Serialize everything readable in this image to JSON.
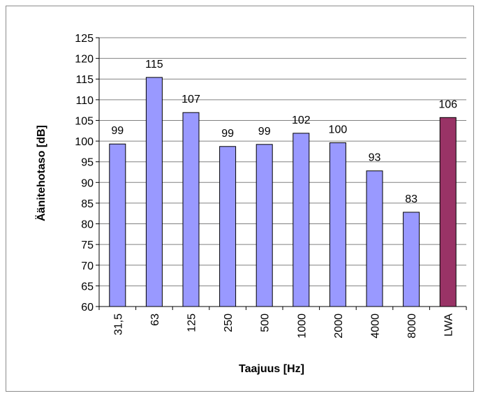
{
  "chart_data": {
    "type": "bar",
    "xlabel": "Taajuus [Hz]",
    "ylabel": "Äänitehotaso [dB]",
    "ylim": [
      60,
      125
    ],
    "ytick_step": 5,
    "grid": true,
    "categories": [
      "31,5",
      "63",
      "125",
      "250",
      "500",
      "1000",
      "2000",
      "4000",
      "8000",
      "LWA"
    ],
    "values": [
      99.3,
      115.4,
      106.9,
      98.7,
      99.2,
      101.9,
      99.6,
      92.8,
      82.8,
      105.7
    ],
    "data_labels": [
      "99",
      "115",
      "107",
      "99",
      "99",
      "102",
      "100",
      "93",
      "83",
      "106"
    ],
    "colors": {
      "bar": "#9999ff",
      "highlight_bar": "#993366",
      "grid": "#808080",
      "axis": "#000000"
    },
    "highlight_category": "LWA"
  }
}
